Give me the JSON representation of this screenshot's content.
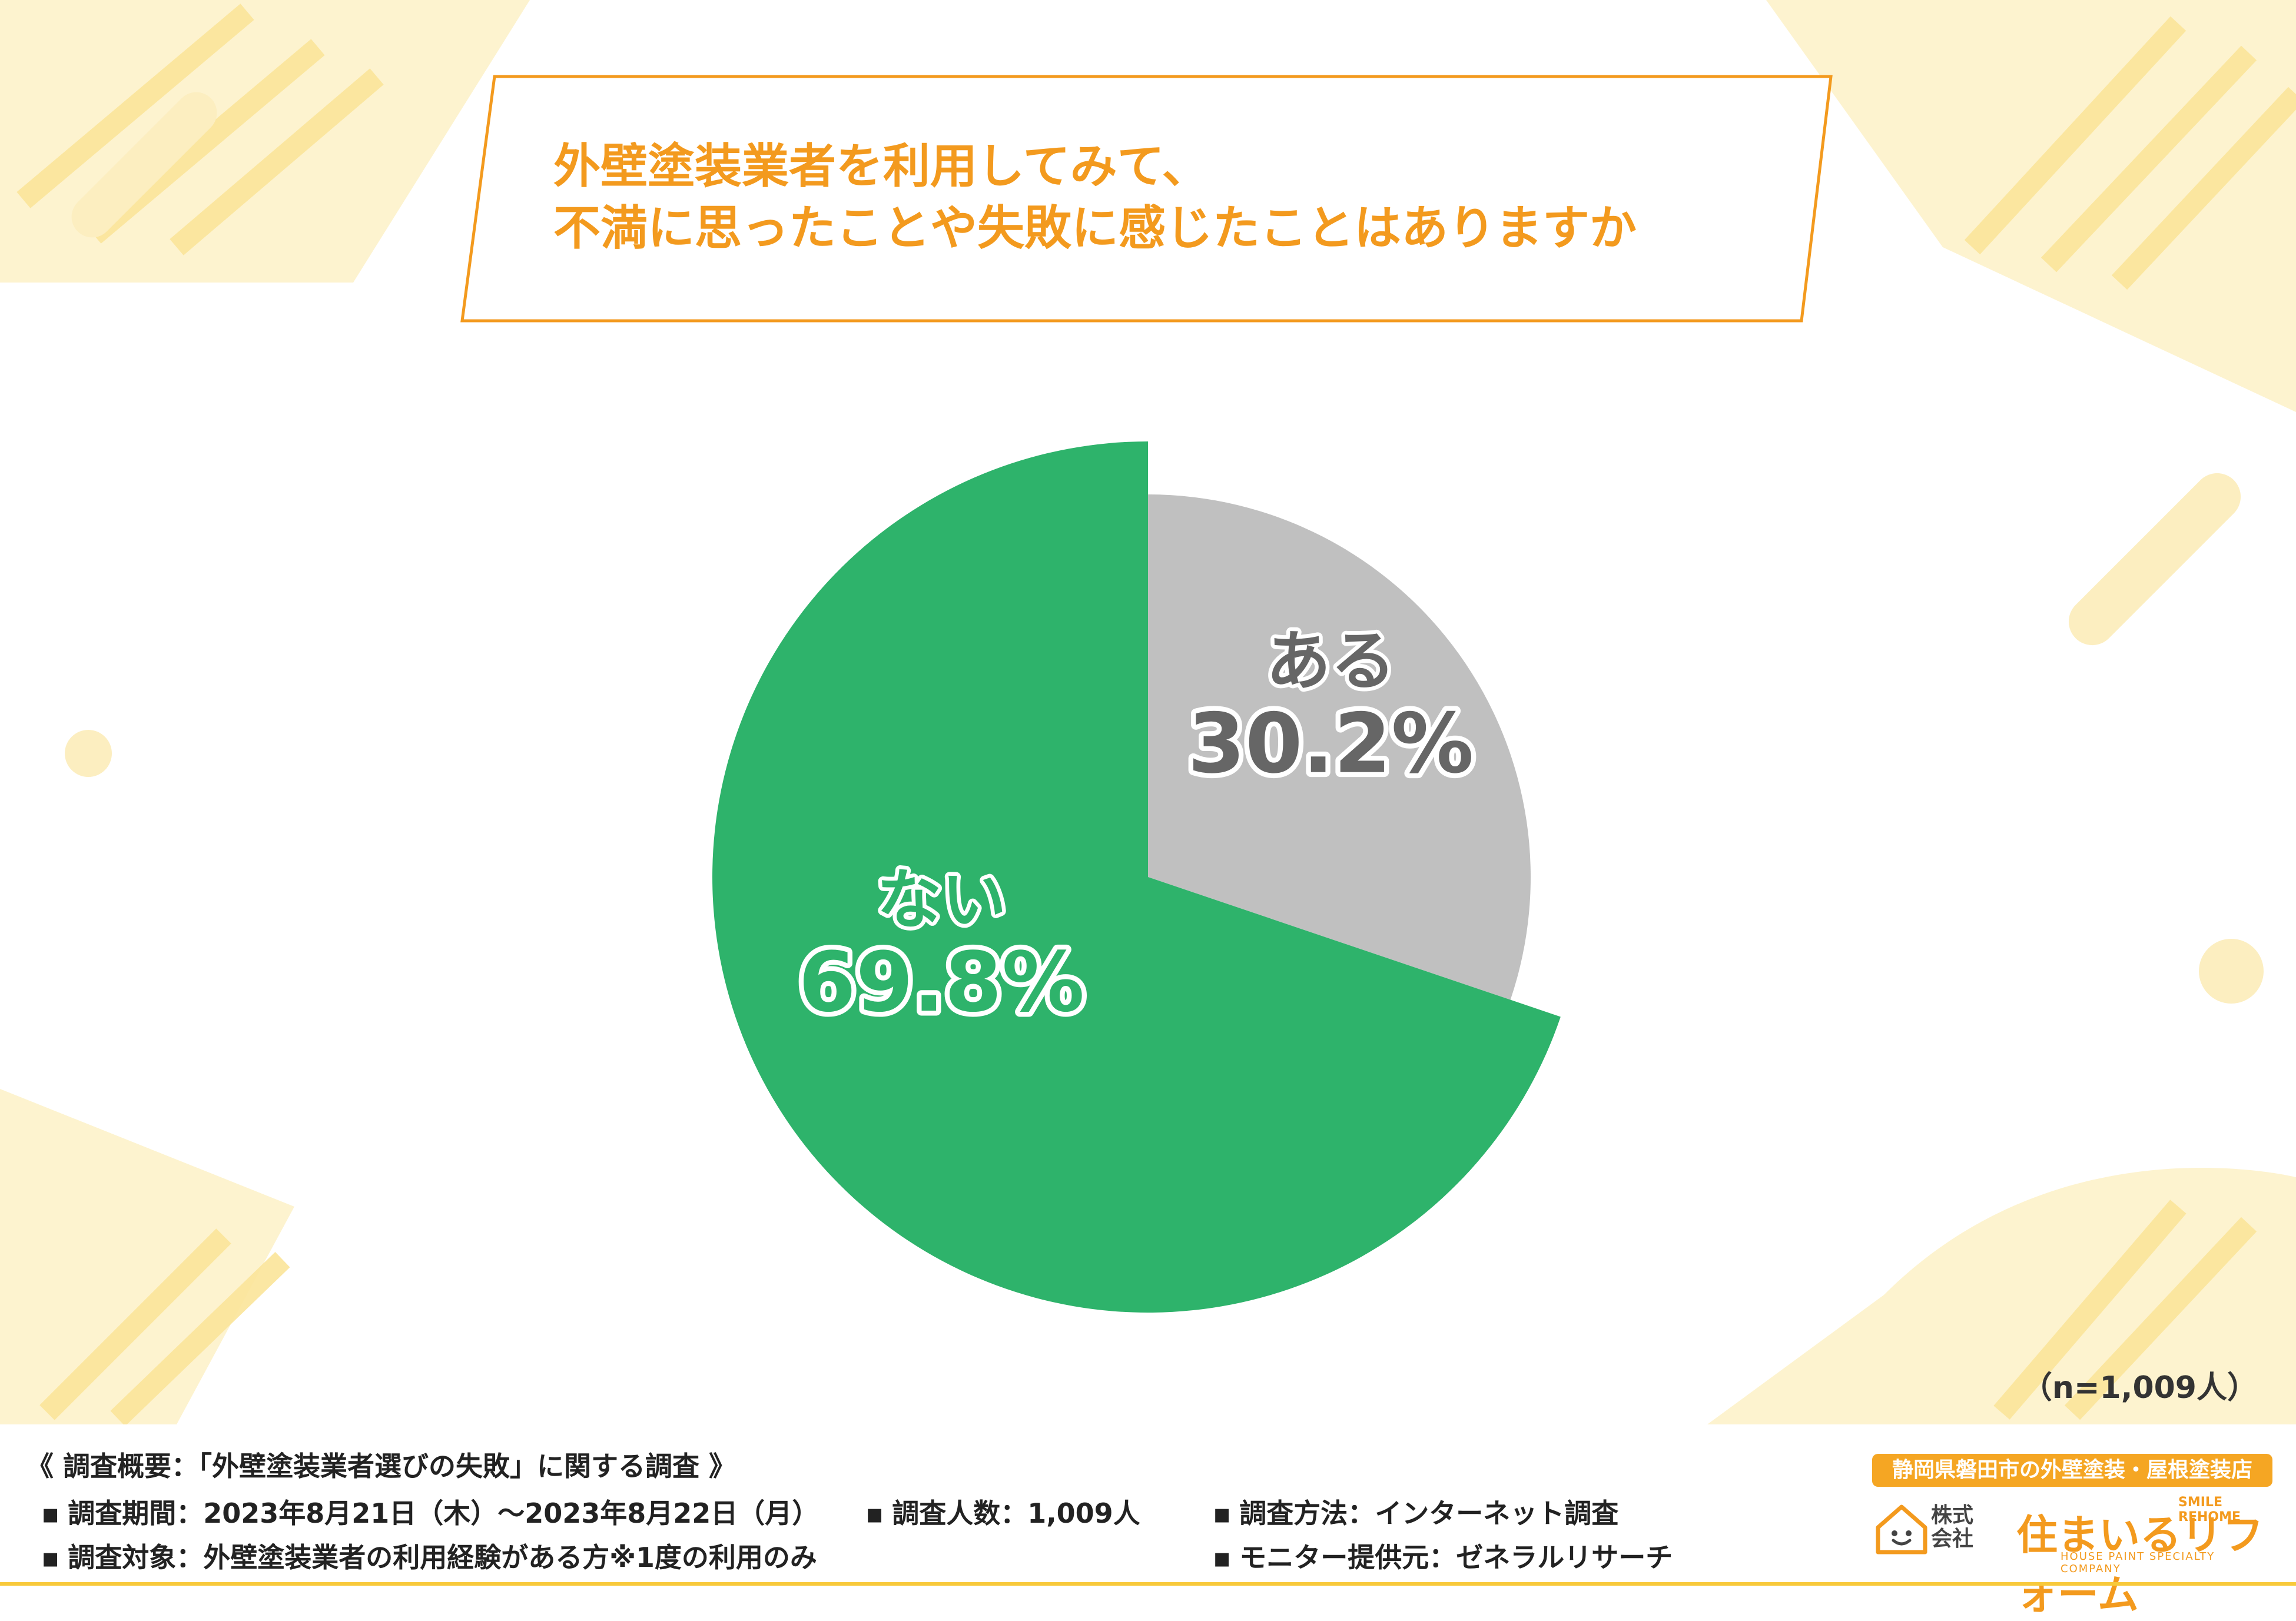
{
  "title": {
    "line1": "外壁塗装業者を利用してみて、",
    "line2": "不満に思ったことや失敗に感じたことはありますか"
  },
  "colors": {
    "accent": "#f39a1e",
    "no": "#2eb36b",
    "yes": "#c0c0c0",
    "bg_deco": "#fbe9a4"
  },
  "chart_data": {
    "type": "pie",
    "slices": [
      {
        "label": "ある",
        "value": 30.2,
        "display": "30.2%",
        "color": "#c0c0c0"
      },
      {
        "label": "ない",
        "value": 69.8,
        "display": "69.8%",
        "color": "#2eb36b"
      }
    ]
  },
  "sample_note": "（n=1,009人）",
  "footer": {
    "survey_title": "《 調査概要：「外壁塗装業者選びの失敗」に関する調査 》",
    "items": [
      "調査期間：2023年8月21日（木）〜2023年8月22日（月）",
      "調査人数：1,009人",
      "調査方法：インターネット調査",
      "調査対象：外壁塗装業者の利用経験がある方※1度の利用のみ",
      "モニター提供元：ゼネラルリサーチ"
    ]
  },
  "logo": {
    "tagline": "静岡県磐田市の外壁塗装・屋根塗装店",
    "kabushiki": "株式\n会社",
    "name": "住まいるリフォーム",
    "english": "SMILE REHOME",
    "sub": "HOUSE PAINT SPECIALTY COMPANY"
  }
}
